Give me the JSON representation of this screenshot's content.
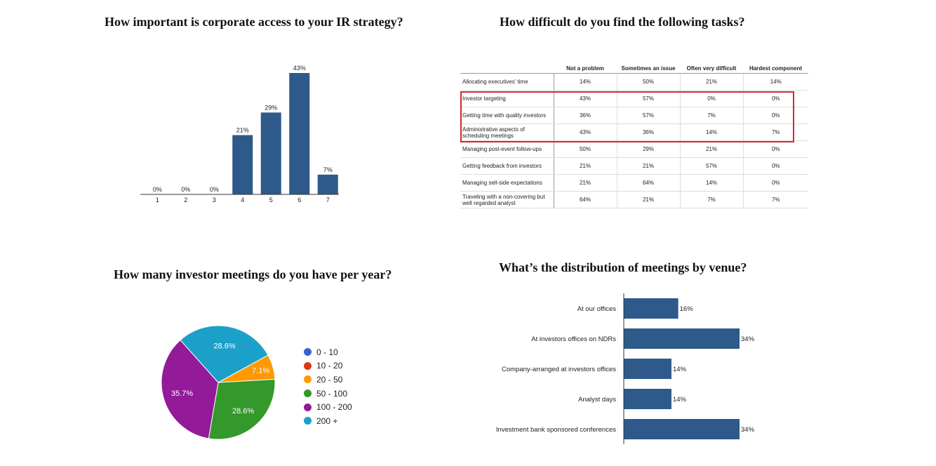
{
  "chart_data": [
    {
      "type": "bar",
      "title": "How important is corporate access to your IR strategy?",
      "categories": [
        "1",
        "2",
        "3",
        "4",
        "5",
        "6",
        "7"
      ],
      "values": [
        0,
        0,
        0,
        21,
        29,
        43,
        7
      ],
      "value_labels": [
        "0%",
        "0%",
        "0%",
        "21%",
        "29%",
        "43%",
        "7%"
      ],
      "ylim": [
        0,
        43
      ],
      "color": "#2d5a8a"
    },
    {
      "type": "table",
      "title": "How difficult do you find the following tasks?",
      "columns": [
        "",
        "Not a problem",
        "Sometimes an issue",
        "Often very difficult",
        "Hardest component"
      ],
      "rows": [
        {
          "label": [
            "Allocating executives’ time"
          ],
          "values": [
            "14%",
            "50%",
            "21%",
            "14%"
          ]
        },
        {
          "label": [
            "Investor targeting"
          ],
          "values": [
            "43%",
            "57%",
            "0%",
            "0%"
          ]
        },
        {
          "label": [
            "Getting time with quality investors"
          ],
          "values": [
            "36%",
            "57%",
            "7%",
            "0%"
          ]
        },
        {
          "label": [
            "Administrative aspects of",
            "scheduling meetings"
          ],
          "values": [
            "43%",
            "36%",
            "14%",
            "7%"
          ]
        },
        {
          "label": [
            "Managing post-event follow-ups"
          ],
          "values": [
            "50%",
            "29%",
            "21%",
            "0%"
          ]
        },
        {
          "label": [
            "Getting feedback from investors"
          ],
          "values": [
            "21%",
            "21%",
            "57%",
            "0%"
          ]
        },
        {
          "label": [
            "Managing sell-side expectations"
          ],
          "values": [
            "21%",
            "64%",
            "14%",
            "0%"
          ]
        },
        {
          "label": [
            "Traveling with a non-covering but",
            "well regarded analyst"
          ],
          "values": [
            "64%",
            "21%",
            "7%",
            "7%"
          ]
        }
      ],
      "highlighted_rows": [
        1,
        2,
        3
      ],
      "highlight_color": "#d9262c"
    },
    {
      "type": "pie",
      "title": "How many investor meetings do you have per year?",
      "slices": [
        {
          "label": "0 - 10",
          "value": 0,
          "color": "#3366cc"
        },
        {
          "label": "10 - 20",
          "value": 0,
          "color": "#dc3912"
        },
        {
          "label": "20 - 50",
          "value": 7.1,
          "color": "#ff9900",
          "display": "7.1%"
        },
        {
          "label": "50 - 100",
          "value": 28.6,
          "color": "#33992a",
          "display": "28.6%"
        },
        {
          "label": "100 - 200",
          "value": 35.7,
          "color": "#931a99",
          "display": "35.7%"
        },
        {
          "label": "200 +",
          "value": 28.6,
          "color": "#1ba0c9",
          "display": "28.6%"
        }
      ],
      "legend_position": "right"
    },
    {
      "type": "bar",
      "orientation": "horizontal",
      "title": "What’s the distribution of meetings by venue?",
      "categories": [
        "At our offices",
        "At investors offices on NDRs",
        "Company-arranged at investors offices",
        "Analyst days",
        "Investment bank sponsored conferences"
      ],
      "values": [
        16,
        34,
        14,
        14,
        34
      ],
      "value_labels": [
        "16%",
        "34%",
        "14%",
        "14%",
        "34%"
      ],
      "xlim": [
        0,
        34
      ],
      "color": "#2d5a8a"
    }
  ]
}
